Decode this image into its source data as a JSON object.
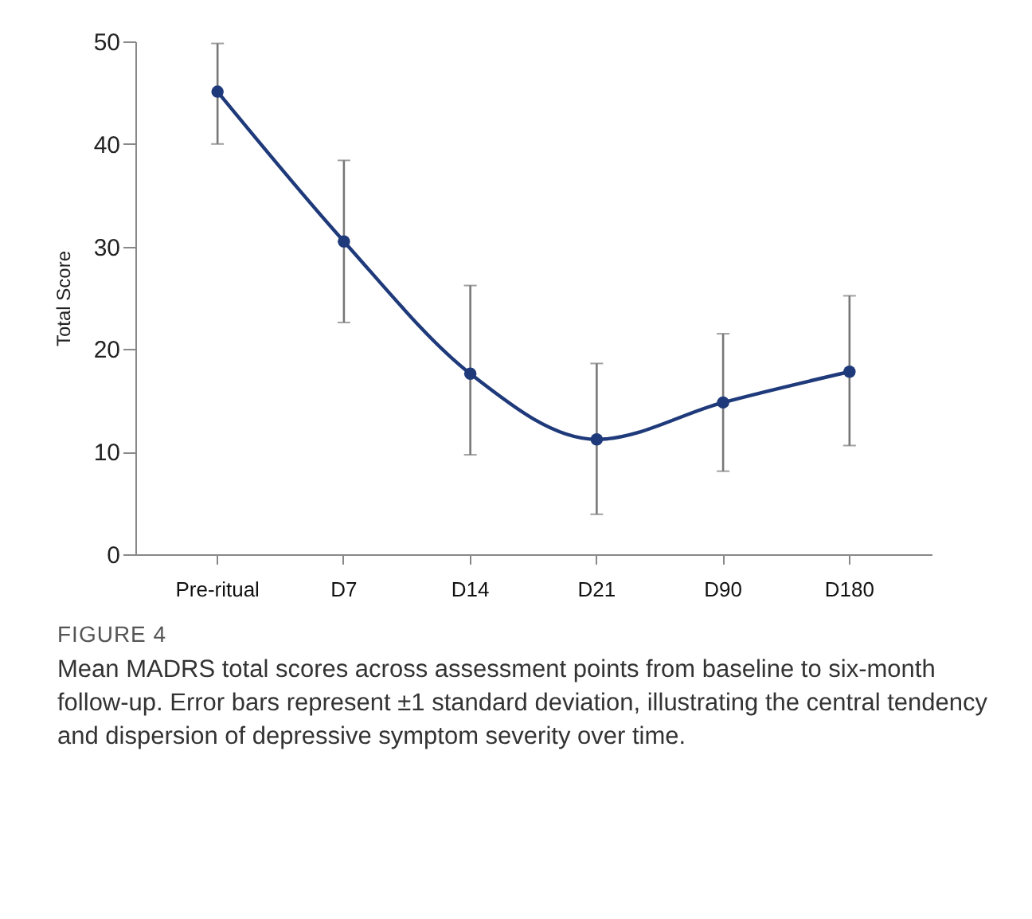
{
  "chart_data": {
    "type": "line",
    "title": "FIGURE 4",
    "annotations": [
      "Mean MADRS total scores across assessment points from baseline to six-month follow-up. Error bars represent ±1 standard deviation, illustrating the central tendency and dispersion of depressive symptom severity over time."
    ],
    "ylabel": "Total Score",
    "categories": [
      "Pre-ritual",
      "D7",
      "D14",
      "D21",
      "D90",
      "D180"
    ],
    "series": [
      {
        "color": "#1f3a7a",
        "values": [
          45.1,
          30.5,
          17.6,
          11.2,
          14.8,
          17.8
        ],
        "errors": [
          [
            40,
            49.8
          ],
          [
            22.6,
            38.4
          ],
          [
            9.7,
            26.2
          ],
          [
            3.9,
            18.6
          ],
          [
            8.1,
            21.5
          ],
          [
            10.6,
            25.2
          ]
        ]
      }
    ],
    "ylim": [
      0,
      50
    ],
    "yticks": [
      0,
      10,
      20,
      30,
      40,
      50
    ],
    "grid": false,
    "marker": "circle",
    "line_style": "solid"
  }
}
